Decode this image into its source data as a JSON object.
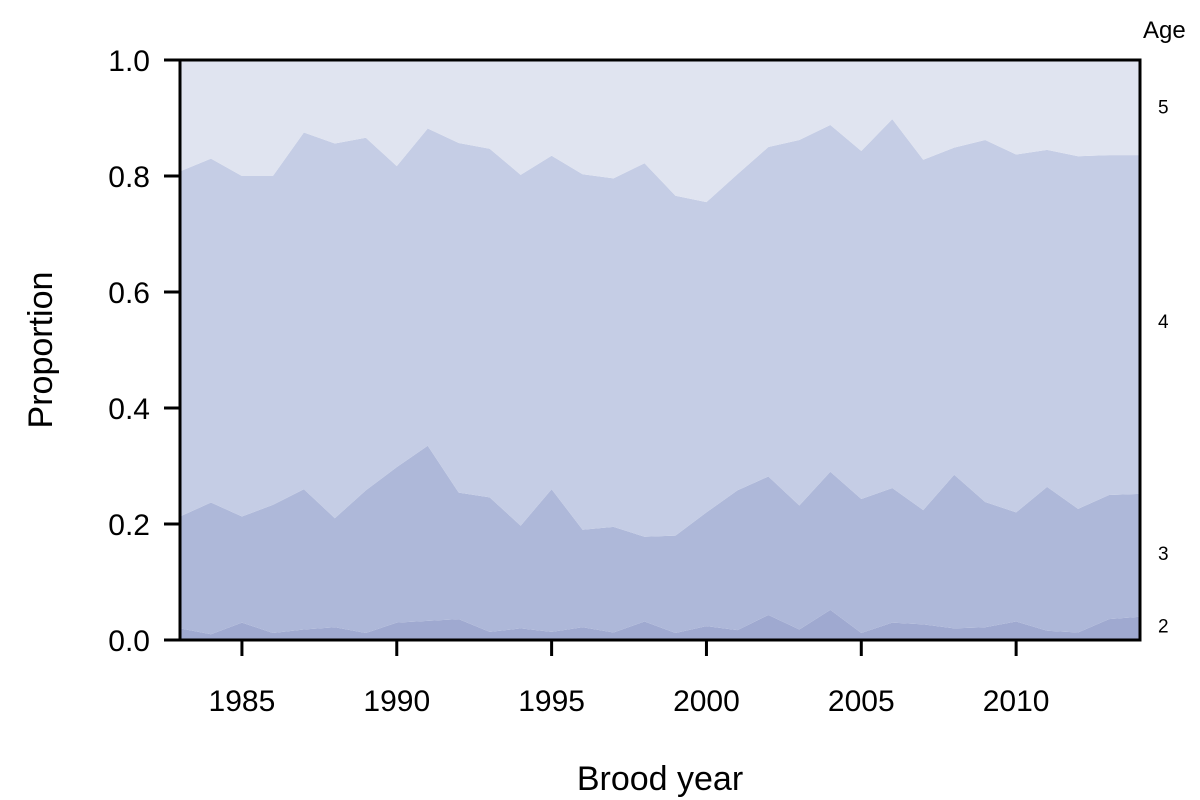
{
  "chart_data": {
    "type": "area",
    "xlabel": "Brood year",
    "ylabel": "Proportion",
    "legend_title": "Age",
    "legend_placement": "right",
    "xlim": [
      1983,
      2014
    ],
    "ylim": [
      0,
      1
    ],
    "xticks": [
      1985,
      1990,
      1995,
      2000,
      2005,
      2010
    ],
    "yticks": [
      "0.0",
      "0.2",
      "0.4",
      "0.6",
      "0.8",
      "1.0"
    ],
    "grid": false,
    "x": [
      1983,
      1984,
      1985,
      1986,
      1987,
      1988,
      1989,
      1990,
      1991,
      1992,
      1993,
      1994,
      1995,
      1996,
      1997,
      1998,
      1999,
      2000,
      2001,
      2002,
      2003,
      2004,
      2005,
      2006,
      2007,
      2008,
      2009,
      2010,
      2011,
      2012,
      2013,
      2014
    ],
    "series": [
      {
        "name": "2",
        "label_y": 0.025,
        "color": "#9fa9d0",
        "cumulative": [
          0.02,
          0.01,
          0.03,
          0.012,
          0.018,
          0.022,
          0.012,
          0.03,
          0.033,
          0.036,
          0.014,
          0.02,
          0.014,
          0.022,
          0.013,
          0.032,
          0.012,
          0.024,
          0.017,
          0.043,
          0.018,
          0.052,
          0.012,
          0.03,
          0.027,
          0.02,
          0.022,
          0.032,
          0.016,
          0.013,
          0.036,
          0.04
        ]
      },
      {
        "name": "3",
        "label_y": 0.15,
        "color": "#aeb8d9",
        "cumulative": [
          0.213,
          0.237,
          0.213,
          0.233,
          0.26,
          0.21,
          0.258,
          0.298,
          0.335,
          0.254,
          0.246,
          0.197,
          0.26,
          0.19,
          0.195,
          0.178,
          0.18,
          0.22,
          0.258,
          0.282,
          0.232,
          0.29,
          0.243,
          0.262,
          0.224,
          0.285,
          0.238,
          0.22,
          0.264,
          0.226,
          0.25,
          0.252
        ]
      },
      {
        "name": "4",
        "label_y": 0.55,
        "color": "#c5cde5",
        "cumulative": [
          0.808,
          0.83,
          0.8,
          0.8,
          0.875,
          0.856,
          0.866,
          0.817,
          0.882,
          0.857,
          0.847,
          0.802,
          0.835,
          0.803,
          0.796,
          0.822,
          0.766,
          0.755,
          0.803,
          0.85,
          0.862,
          0.888,
          0.843,
          0.898,
          0.828,
          0.849,
          0.862,
          0.837,
          0.845,
          0.834,
          0.836,
          0.836
        ]
      },
      {
        "name": "5",
        "label_y": 0.92,
        "color": "#e0e4f0",
        "cumulative": [
          1,
          1,
          1,
          1,
          1,
          1,
          1,
          1,
          1,
          1,
          1,
          1,
          1,
          1,
          1,
          1,
          1,
          1,
          1,
          1,
          1,
          1,
          1,
          1,
          1,
          1,
          1,
          1,
          1,
          1,
          1,
          1
        ]
      }
    ]
  }
}
